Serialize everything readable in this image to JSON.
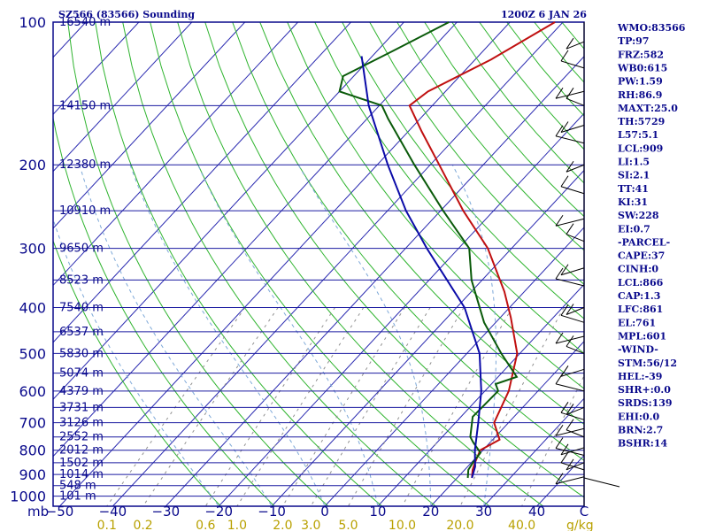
{
  "chart_data": {
    "type": "skew-t log-p sounding",
    "title": "SZ566 (83566) Sounding",
    "timestamp": "1200Z  6 JAN 26",
    "pressure_ticks": [
      100,
      200,
      300,
      400,
      500,
      600,
      700,
      800,
      900,
      1000
    ],
    "pressure_label": "mb",
    "temperature_ticks": [
      -50,
      -40,
      -30,
      -20,
      -10,
      0,
      10,
      20,
      30,
      40
    ],
    "temperature_ticks_right": "C",
    "mixing_ratio_ticks": [
      "0.1",
      "0.2",
      "0.6",
      "1.0",
      "2.0",
      "3.0",
      "5.0",
      "10.0",
      "20.0",
      "40.0"
    ],
    "mixing_ratio_unit": "g/kg",
    "height_levels": [
      {
        "p": 100,
        "label": "16540 m"
      },
      {
        "p": 150,
        "label": "14150 m"
      },
      {
        "p": 200,
        "label": "12380 m"
      },
      {
        "p": 250,
        "label": "10910 m"
      },
      {
        "p": 300,
        "label": "9650 m"
      },
      {
        "p": 350,
        "label": "8523 m"
      },
      {
        "p": 400,
        "label": "7540 m"
      },
      {
        "p": 450,
        "label": "6537 m"
      },
      {
        "p": 500,
        "label": "5830 m"
      },
      {
        "p": 550,
        "label": "5074 m"
      },
      {
        "p": 600,
        "label": "4379 m"
      },
      {
        "p": 650,
        "label": "3731 m"
      },
      {
        "p": 700,
        "label": "3126 m"
      },
      {
        "p": 750,
        "label": "2552 m"
      },
      {
        "p": 800,
        "label": "2012 m"
      },
      {
        "p": 850,
        "label": "1502 m"
      },
      {
        "p": 900,
        "label": "1014 m"
      },
      {
        "p": 950,
        "label": "548 m"
      },
      {
        "p": 1000,
        "label": "101 m"
      }
    ],
    "series": [
      {
        "name": "Temperature",
        "color": "#c01010",
        "points": [
          [
            915,
            22.8
          ],
          [
            880,
            21.5
          ],
          [
            850,
            20.7
          ],
          [
            800,
            19.5
          ],
          [
            760,
            21.3
          ],
          [
            700,
            17.3
          ],
          [
            600,
            14.5
          ],
          [
            500,
            9.5
          ],
          [
            420,
            2.0
          ],
          [
            370,
            -3.8
          ],
          [
            300,
            -14.5
          ],
          [
            250,
            -25.7
          ],
          [
            200,
            -38.3
          ],
          [
            170,
            -47.5
          ],
          [
            150,
            -54.3
          ],
          [
            140,
            -53.3
          ],
          [
            120,
            -47.0
          ],
          [
            100,
            -41.5
          ]
        ]
      },
      {
        "name": "Dewpoint",
        "color": "#0a5a0a",
        "points": [
          [
            915,
            22.0
          ],
          [
            880,
            20.7
          ],
          [
            850,
            20.3
          ],
          [
            810,
            20.0
          ],
          [
            770,
            16.8
          ],
          [
            750,
            15.3
          ],
          [
            680,
            12.2
          ],
          [
            600,
            12.5
          ],
          [
            580,
            10.8
          ],
          [
            560,
            13.5
          ],
          [
            500,
            6.5
          ],
          [
            430,
            -2.2
          ],
          [
            350,
            -12.0
          ],
          [
            300,
            -18.0
          ],
          [
            250,
            -29.5
          ],
          [
            200,
            -43.0
          ],
          [
            160,
            -56.0
          ],
          [
            150,
            -59.5
          ],
          [
            140,
            -70.0
          ],
          [
            130,
            -72.0
          ],
          [
            115,
            -67.0
          ],
          [
            100,
            -61.5
          ]
        ]
      },
      {
        "name": "Parcel path",
        "color": "#0a0aa8",
        "points": [
          [
            915,
            22.8
          ],
          [
            866,
            21.4
          ],
          [
            800,
            18.5
          ],
          [
            700,
            14.3
          ],
          [
            600,
            9.3
          ],
          [
            500,
            2.4
          ],
          [
            400,
            -8.5
          ],
          [
            300,
            -26.0
          ],
          [
            250,
            -36.5
          ],
          [
            200,
            -48.0
          ],
          [
            150,
            -62.0
          ],
          [
            118,
            -72.0
          ]
        ]
      }
    ],
    "indices": [
      "WMO:83566",
      "TP:97",
      "FRZ:582",
      "WB0:615",
      "PW:1.59",
      "RH:86.9",
      "MAXT:25.0",
      "TH:5729",
      "L57:5.1",
      "LCL:909",
      "LI:1.5",
      "SI:2.1",
      "TT:41",
      "KI:31",
      "SW:228",
      "EI:0.7",
      "-PARCEL-",
      "CAPE:37",
      "CINH:0",
      "LCL:866",
      "CAP:1.3",
      "LFC:861",
      "EL:761",
      "MPL:601",
      "-WIND-",
      "STM:56/12",
      "HEL:-39",
      "SHR+:0.0",
      "SRDS:139",
      "EHI:0.0",
      "BRN:2.7",
      "BSHR:14"
    ]
  },
  "colors": {
    "frame": "#0a0a8c",
    "isotherm": "#2a2ab0",
    "isobar": "#1a1aa0",
    "dry_adiabat": "#2fb42f",
    "moist_adiabat": "#7da8d8",
    "mixing_ratio": "#909090",
    "wind": "#000000"
  }
}
